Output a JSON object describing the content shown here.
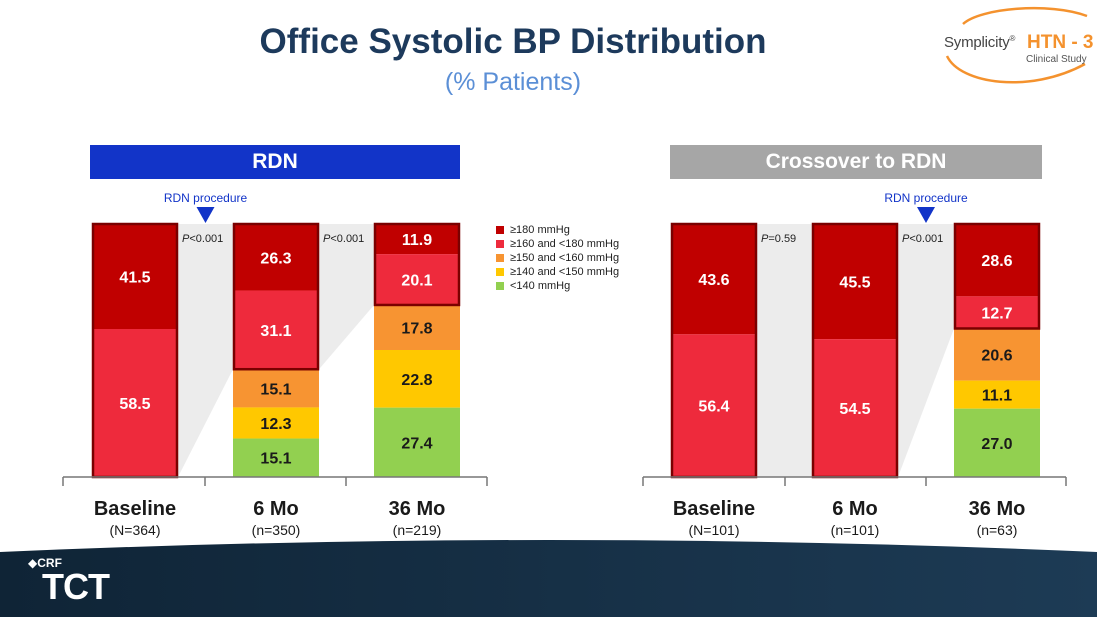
{
  "title": "Office Systolic BP Distribution",
  "subtitle": "(% Patients)",
  "logo": {
    "brand": "Symplicity",
    "reg": "®",
    "study": "HTN - 3",
    "tagline": "Clinical Study"
  },
  "footer": {
    "org": "CRF",
    "event": "TCT"
  },
  "legend": [
    {
      "label": "≥180 mmHg",
      "color": "#c00000"
    },
    {
      "label": "≥160 and <180 mmHg",
      "color": "#ee2a3c"
    },
    {
      "label": "≥150 and <160 mmHg",
      "color": "#f79432"
    },
    {
      "label": "≥140 and <150 mmHg",
      "color": "#ffc800"
    },
    {
      "label": "<140 mmHg",
      "color": "#92d050"
    }
  ],
  "chart_data": [
    {
      "type": "bar",
      "stacked": true,
      "title": "RDN",
      "header_color": "#1234c8",
      "annotation": "RDN procedure",
      "categories": [
        "Baseline",
        "6 Mo",
        "36 Mo"
      ],
      "n_labels": [
        "(N=364)",
        "(n=350)",
        "(n=219)"
      ],
      "p_values": [
        "P<0.001",
        "P<0.001"
      ],
      "series": [
        {
          "name": "≥180 mmHg",
          "values": [
            41.5,
            26.3,
            11.9
          ]
        },
        {
          "name": "≥160 and <180 mmHg",
          "values": [
            58.5,
            31.1,
            20.1
          ]
        },
        {
          "name": "≥150 and <160 mmHg",
          "values": [
            0,
            15.1,
            17.8
          ]
        },
        {
          "name": "≥140 and <150 mmHg",
          "values": [
            0,
            12.3,
            22.8
          ]
        },
        {
          "name": "<140 mmHg",
          "values": [
            0,
            15.1,
            27.4
          ]
        }
      ],
      "ylim": [
        0,
        100
      ]
    },
    {
      "type": "bar",
      "stacked": true,
      "title": "Crossover to RDN",
      "header_color": "#a6a6a6",
      "annotation": "RDN procedure",
      "categories": [
        "Baseline",
        "6 Mo",
        "36 Mo"
      ],
      "n_labels": [
        "(N=101)",
        "(n=101)",
        "(n=63)"
      ],
      "p_values": [
        "P=0.59",
        "P<0.001"
      ],
      "series": [
        {
          "name": "≥180 mmHg",
          "values": [
            43.6,
            45.5,
            28.6
          ]
        },
        {
          "name": "≥160 and <180 mmHg",
          "values": [
            56.4,
            54.5,
            12.7
          ]
        },
        {
          "name": "≥150 and <160 mmHg",
          "values": [
            0,
            0,
            20.6
          ]
        },
        {
          "name": "≥140 and <150 mmHg",
          "values": [
            0,
            0,
            11.1
          ]
        },
        {
          "name": "<140 mmHg",
          "values": [
            0,
            0,
            27.0
          ]
        }
      ],
      "ylim": [
        0,
        100
      ]
    }
  ]
}
